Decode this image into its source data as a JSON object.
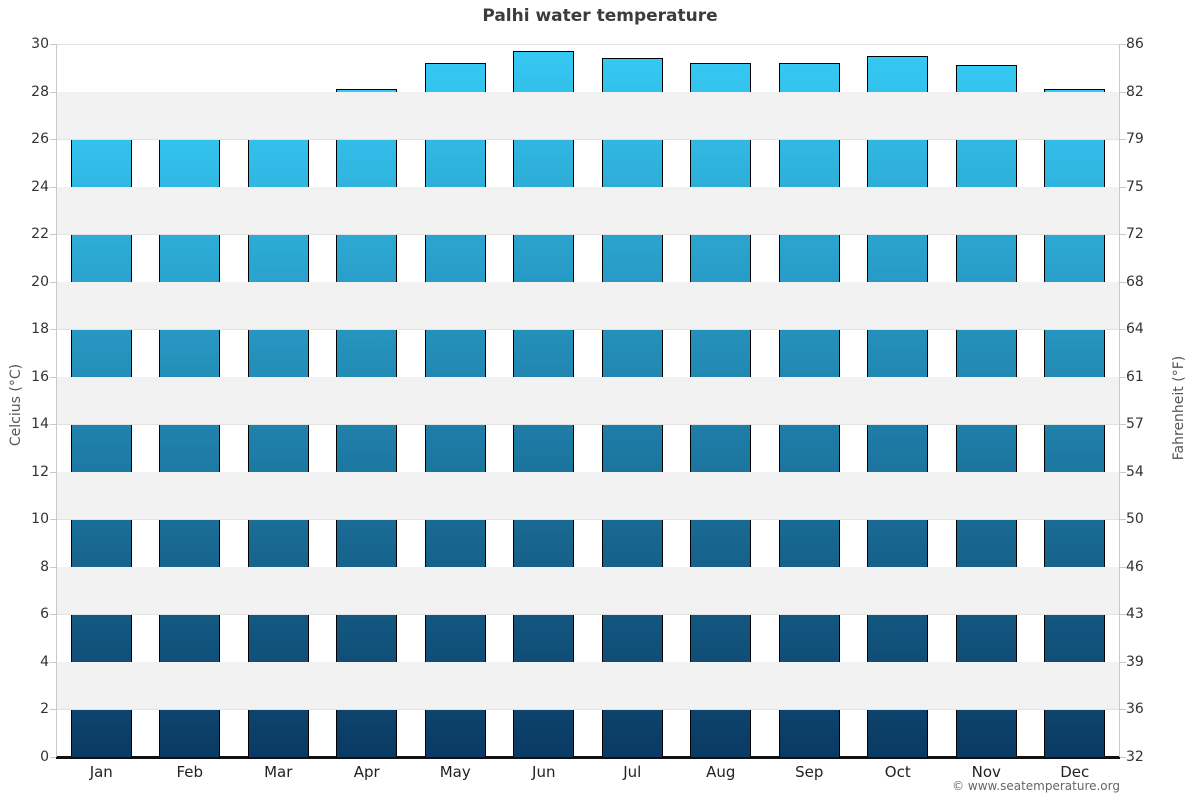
{
  "chart_data": {
    "type": "bar",
    "title": "Palhi water temperature",
    "categories": [
      "Jan",
      "Feb",
      "Mar",
      "Apr",
      "May",
      "Jun",
      "Jul",
      "Aug",
      "Sep",
      "Oct",
      "Nov",
      "Dec"
    ],
    "values": [
      27.1,
      27.0,
      27.4,
      28.1,
      29.2,
      29.7,
      29.4,
      29.2,
      29.2,
      29.5,
      29.1,
      28.1
    ],
    "unit": "°C",
    "ylabel_left": "Celcius (°C)",
    "ylabel_right": "Fahrenheit (°F)",
    "ylim": [
      0,
      30
    ],
    "ytick_step": 2,
    "celsius_tick_labels": [
      "30",
      "28",
      "26",
      "24",
      "22",
      "20",
      "18",
      "16",
      "14",
      "12",
      "10",
      "8",
      "6",
      "4",
      "2",
      "0"
    ],
    "fahrenheit_tick_labels": [
      "86",
      "82",
      "79",
      "75",
      "72",
      "68",
      "64",
      "61",
      "57",
      "54",
      "50",
      "46",
      "43",
      "39",
      "36",
      "32"
    ],
    "grid": "alternating horizontal bands every 2°C",
    "legend": "none"
  },
  "footer": {
    "copyright": "© www.seatemperature.org"
  },
  "colors": {
    "bar_gradient_top": "#35c8f3",
    "bar_gradient_bottom": "#0a3a63",
    "bar_border": "#000000",
    "band_fill": "#f2f2f2",
    "gridline": "#e2e2e2",
    "axis_line": "#c9c9c9",
    "baseline": "#111111",
    "title_color": "#3c3c3c",
    "tick_label_color": "#333333",
    "axis_title_color": "#555555",
    "copyright_color": "#666666"
  }
}
